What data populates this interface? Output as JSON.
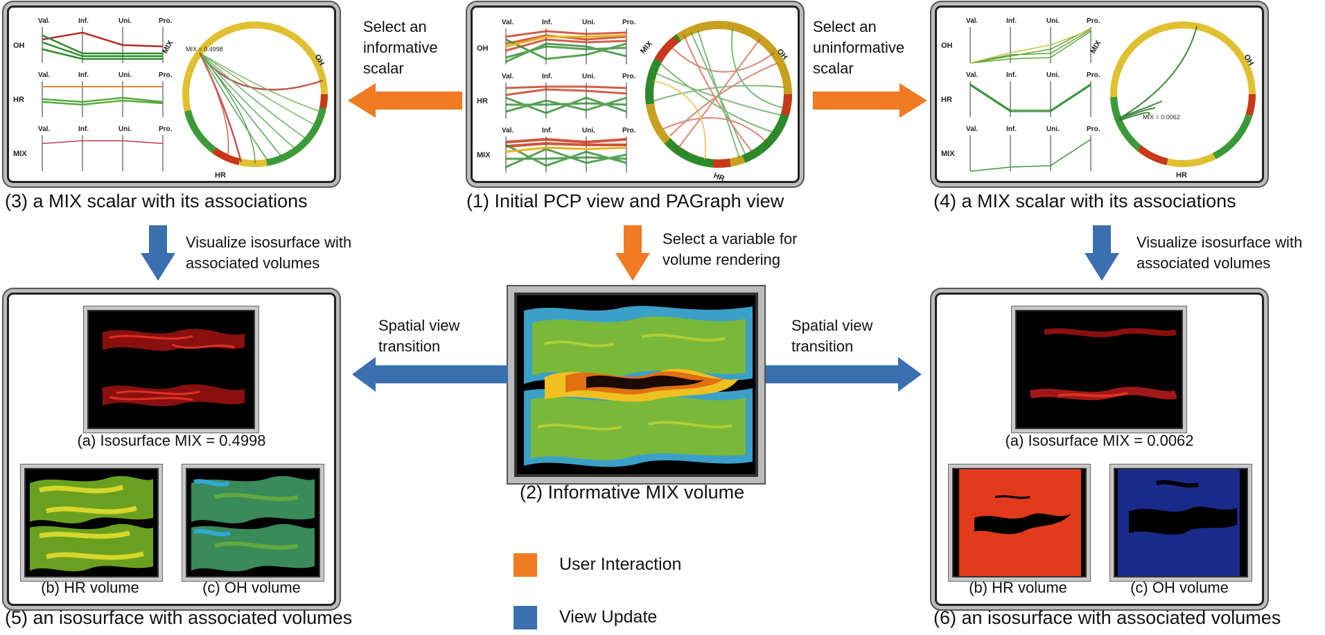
{
  "colors": {
    "interaction": "#f07b22",
    "update": "#3a6fb0"
  },
  "captions": {
    "p1": "(1) Initial PCP view and PAGraph view",
    "p2": "(2) Informative MIX volume",
    "p3": "(3) a MIX scalar with its associations",
    "p4": "(4) a MIX scalar with its associations",
    "p5": "(5) an isosurface with associated volumes",
    "p6": "(6) an isosurface with associated volumes"
  },
  "notes": {
    "left_select": [
      "Select an",
      "informative",
      "scalar"
    ],
    "right_select": [
      "Select an",
      "uninformative",
      "scalar"
    ],
    "left_viz": [
      "Visualize isosurface with",
      "associated volumes"
    ],
    "center_select": [
      "Select a variable for",
      "volume rendering"
    ],
    "right_viz": [
      "Visualize isosurface with",
      "associated volumes"
    ],
    "left_transition": [
      "Spatial view",
      "transition"
    ],
    "right_transition": [
      "Spatial view",
      "transition"
    ]
  },
  "pcp": {
    "axes": [
      "Val.",
      "Inf.",
      "Uni.",
      "Pro."
    ],
    "rows": [
      "OH",
      "HR",
      "MIX"
    ]
  },
  "graph": {
    "labels": [
      "MIX",
      "OH",
      "HR"
    ],
    "mix_left": "MIX = 0.4998",
    "mix_right": "MIX = 0.0062"
  },
  "left_volumes": {
    "iso": "(a) Isosurface MIX = 0.4998",
    "hr": "(b) HR volume",
    "oh": "(c) OH volume"
  },
  "right_volumes": {
    "iso": "(a) Isosurface MIX = 0.0062",
    "hr": "(b) HR volume",
    "oh": "(c) OH volume"
  },
  "legend": {
    "interaction": "User Interaction",
    "update": "View Update"
  }
}
